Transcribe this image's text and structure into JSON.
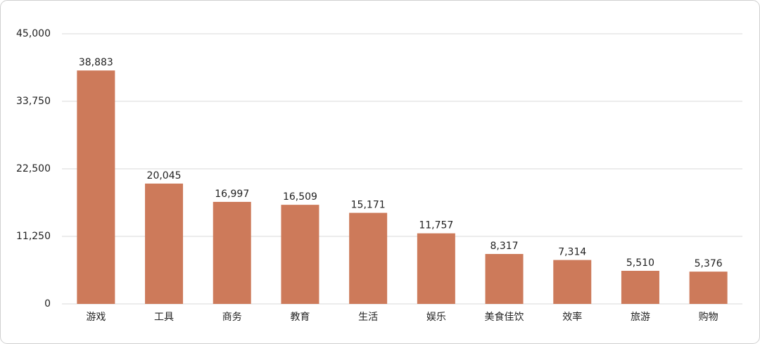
{
  "chart_data": {
    "type": "bar",
    "categories": [
      "游戏",
      "工具",
      "商务",
      "教育",
      "生活",
      "娱乐",
      "美食佳饮",
      "效率",
      "旅游",
      "购物"
    ],
    "values": [
      38883,
      20045,
      16997,
      16509,
      15171,
      11757,
      8317,
      7314,
      5510,
      5376
    ],
    "value_labels": [
      "38,883",
      "20,045",
      "16,997",
      "16,509",
      "15,171",
      "11,757",
      "8,317",
      "7,314",
      "5,510",
      "5,376"
    ],
    "color": "#cd7a5a",
    "ylim": [
      0,
      45000
    ],
    "yticks": [
      0,
      {
        "value": 11250,
        "label": "11,250"
      },
      {
        "value": 22500,
        "label": "22,500"
      },
      {
        "value": 33750,
        "label": "33,750"
      },
      {
        "value": 45000,
        "label": "45,000"
      }
    ],
    "grid": true
  }
}
